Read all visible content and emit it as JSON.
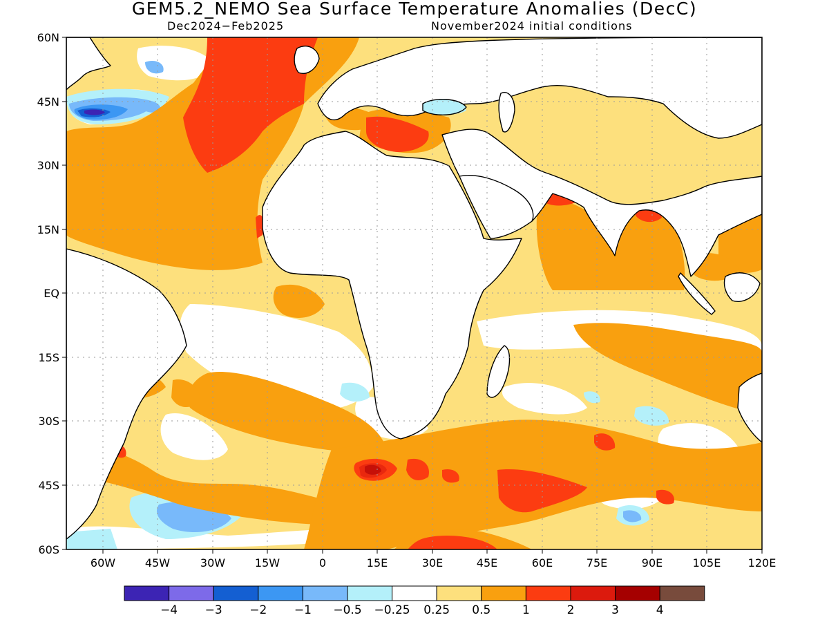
{
  "title": "GEM5.2_NEMO Sea Surface Temperature Anomalies (DecC)",
  "subtitle_period": "Dec2024−Feb2025",
  "subtitle_init": "November2024 initial conditions",
  "axes": {
    "lat_labels": [
      "60N",
      "45N",
      "30N",
      "15N",
      "EQ",
      "15S",
      "30S",
      "45S",
      "60S"
    ],
    "lon_labels": [
      "60W",
      "45W",
      "30W",
      "15W",
      "0",
      "15E",
      "30E",
      "45E",
      "60E",
      "75E",
      "90E",
      "105E",
      "120E"
    ]
  },
  "colorbar": {
    "colors": [
      "#3c24b4",
      "#7d6ae9",
      "#145fd2",
      "#3c97f3",
      "#78b9fa",
      "#b4f0fa",
      "#ffffff",
      "#fde07d",
      "#f9a00f",
      "#fc3c11",
      "#dc1a0d",
      "#a50000",
      "#784b3c"
    ],
    "labels": [
      "−4",
      "−3",
      "−2",
      "−1",
      "−0.5",
      "−0.25",
      "0.25",
      "0.5",
      "1",
      "2",
      "3",
      "4"
    ]
  },
  "map": {
    "lon_range": [
      -70,
      120
    ],
    "lat_range": [
      -60,
      60
    ],
    "palette": {
      "land": "#ffffff",
      "coast": "#000000",
      "grid": "#9a9a9a"
    }
  }
}
